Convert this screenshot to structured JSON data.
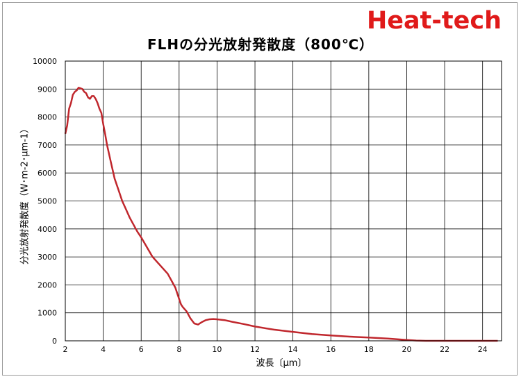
{
  "brand": {
    "text": "Heat-tech",
    "color": "#e01a1a"
  },
  "chart_data": {
    "type": "line",
    "title": "FLHの分光放射発散度（800℃）",
    "xlabel": "波長〔μm〕",
    "ylabel": "分光放射発散度（W･m-2･μm-1）",
    "xlim": [
      2,
      25
    ],
    "ylim": [
      0,
      10000
    ],
    "xticks": [
      2,
      4,
      6,
      8,
      10,
      12,
      14,
      16,
      18,
      20,
      22,
      24
    ],
    "yticks": [
      0,
      1000,
      2000,
      3000,
      4000,
      5000,
      6000,
      7000,
      8000,
      9000,
      10000
    ],
    "grid": true,
    "line_color": "#c0272d",
    "x": [
      2.0,
      2.1,
      2.2,
      2.3,
      2.4,
      2.5,
      2.6,
      2.7,
      2.8,
      2.9,
      3.0,
      3.1,
      3.2,
      3.3,
      3.4,
      3.5,
      3.6,
      3.7,
      3.8,
      3.9,
      4.0,
      4.1,
      4.2,
      4.4,
      4.6,
      4.8,
      5.0,
      5.2,
      5.4,
      5.6,
      5.8,
      6.0,
      6.3,
      6.6,
      7.0,
      7.4,
      7.8,
      8.0,
      8.1,
      8.2,
      8.4,
      8.6,
      8.8,
      9.0,
      9.2,
      9.4,
      9.6,
      9.8,
      10.0,
      10.4,
      10.8,
      11.4,
      12.0,
      13.0,
      14.0,
      15.0,
      16.0,
      17.0,
      18.0,
      19.0,
      20.0,
      20.5,
      21.0,
      22.0,
      23.0,
      24.0,
      24.5,
      24.8
    ],
    "y": [
      7400,
      7700,
      8300,
      8500,
      8800,
      8900,
      8950,
      9050,
      9030,
      9000,
      8900,
      8850,
      8700,
      8650,
      8750,
      8750,
      8650,
      8500,
      8300,
      8150,
      7750,
      7400,
      7000,
      6400,
      5800,
      5400,
      5000,
      4700,
      4400,
      4150,
      3900,
      3700,
      3350,
      3000,
      2700,
      2400,
      1900,
      1500,
      1300,
      1200,
      1050,
      800,
      620,
      580,
      670,
      740,
      770,
      780,
      770,
      740,
      680,
      600,
      510,
      400,
      320,
      240,
      190,
      150,
      120,
      80,
      30,
      10,
      0,
      0,
      0,
      0,
      0,
      0
    ]
  }
}
